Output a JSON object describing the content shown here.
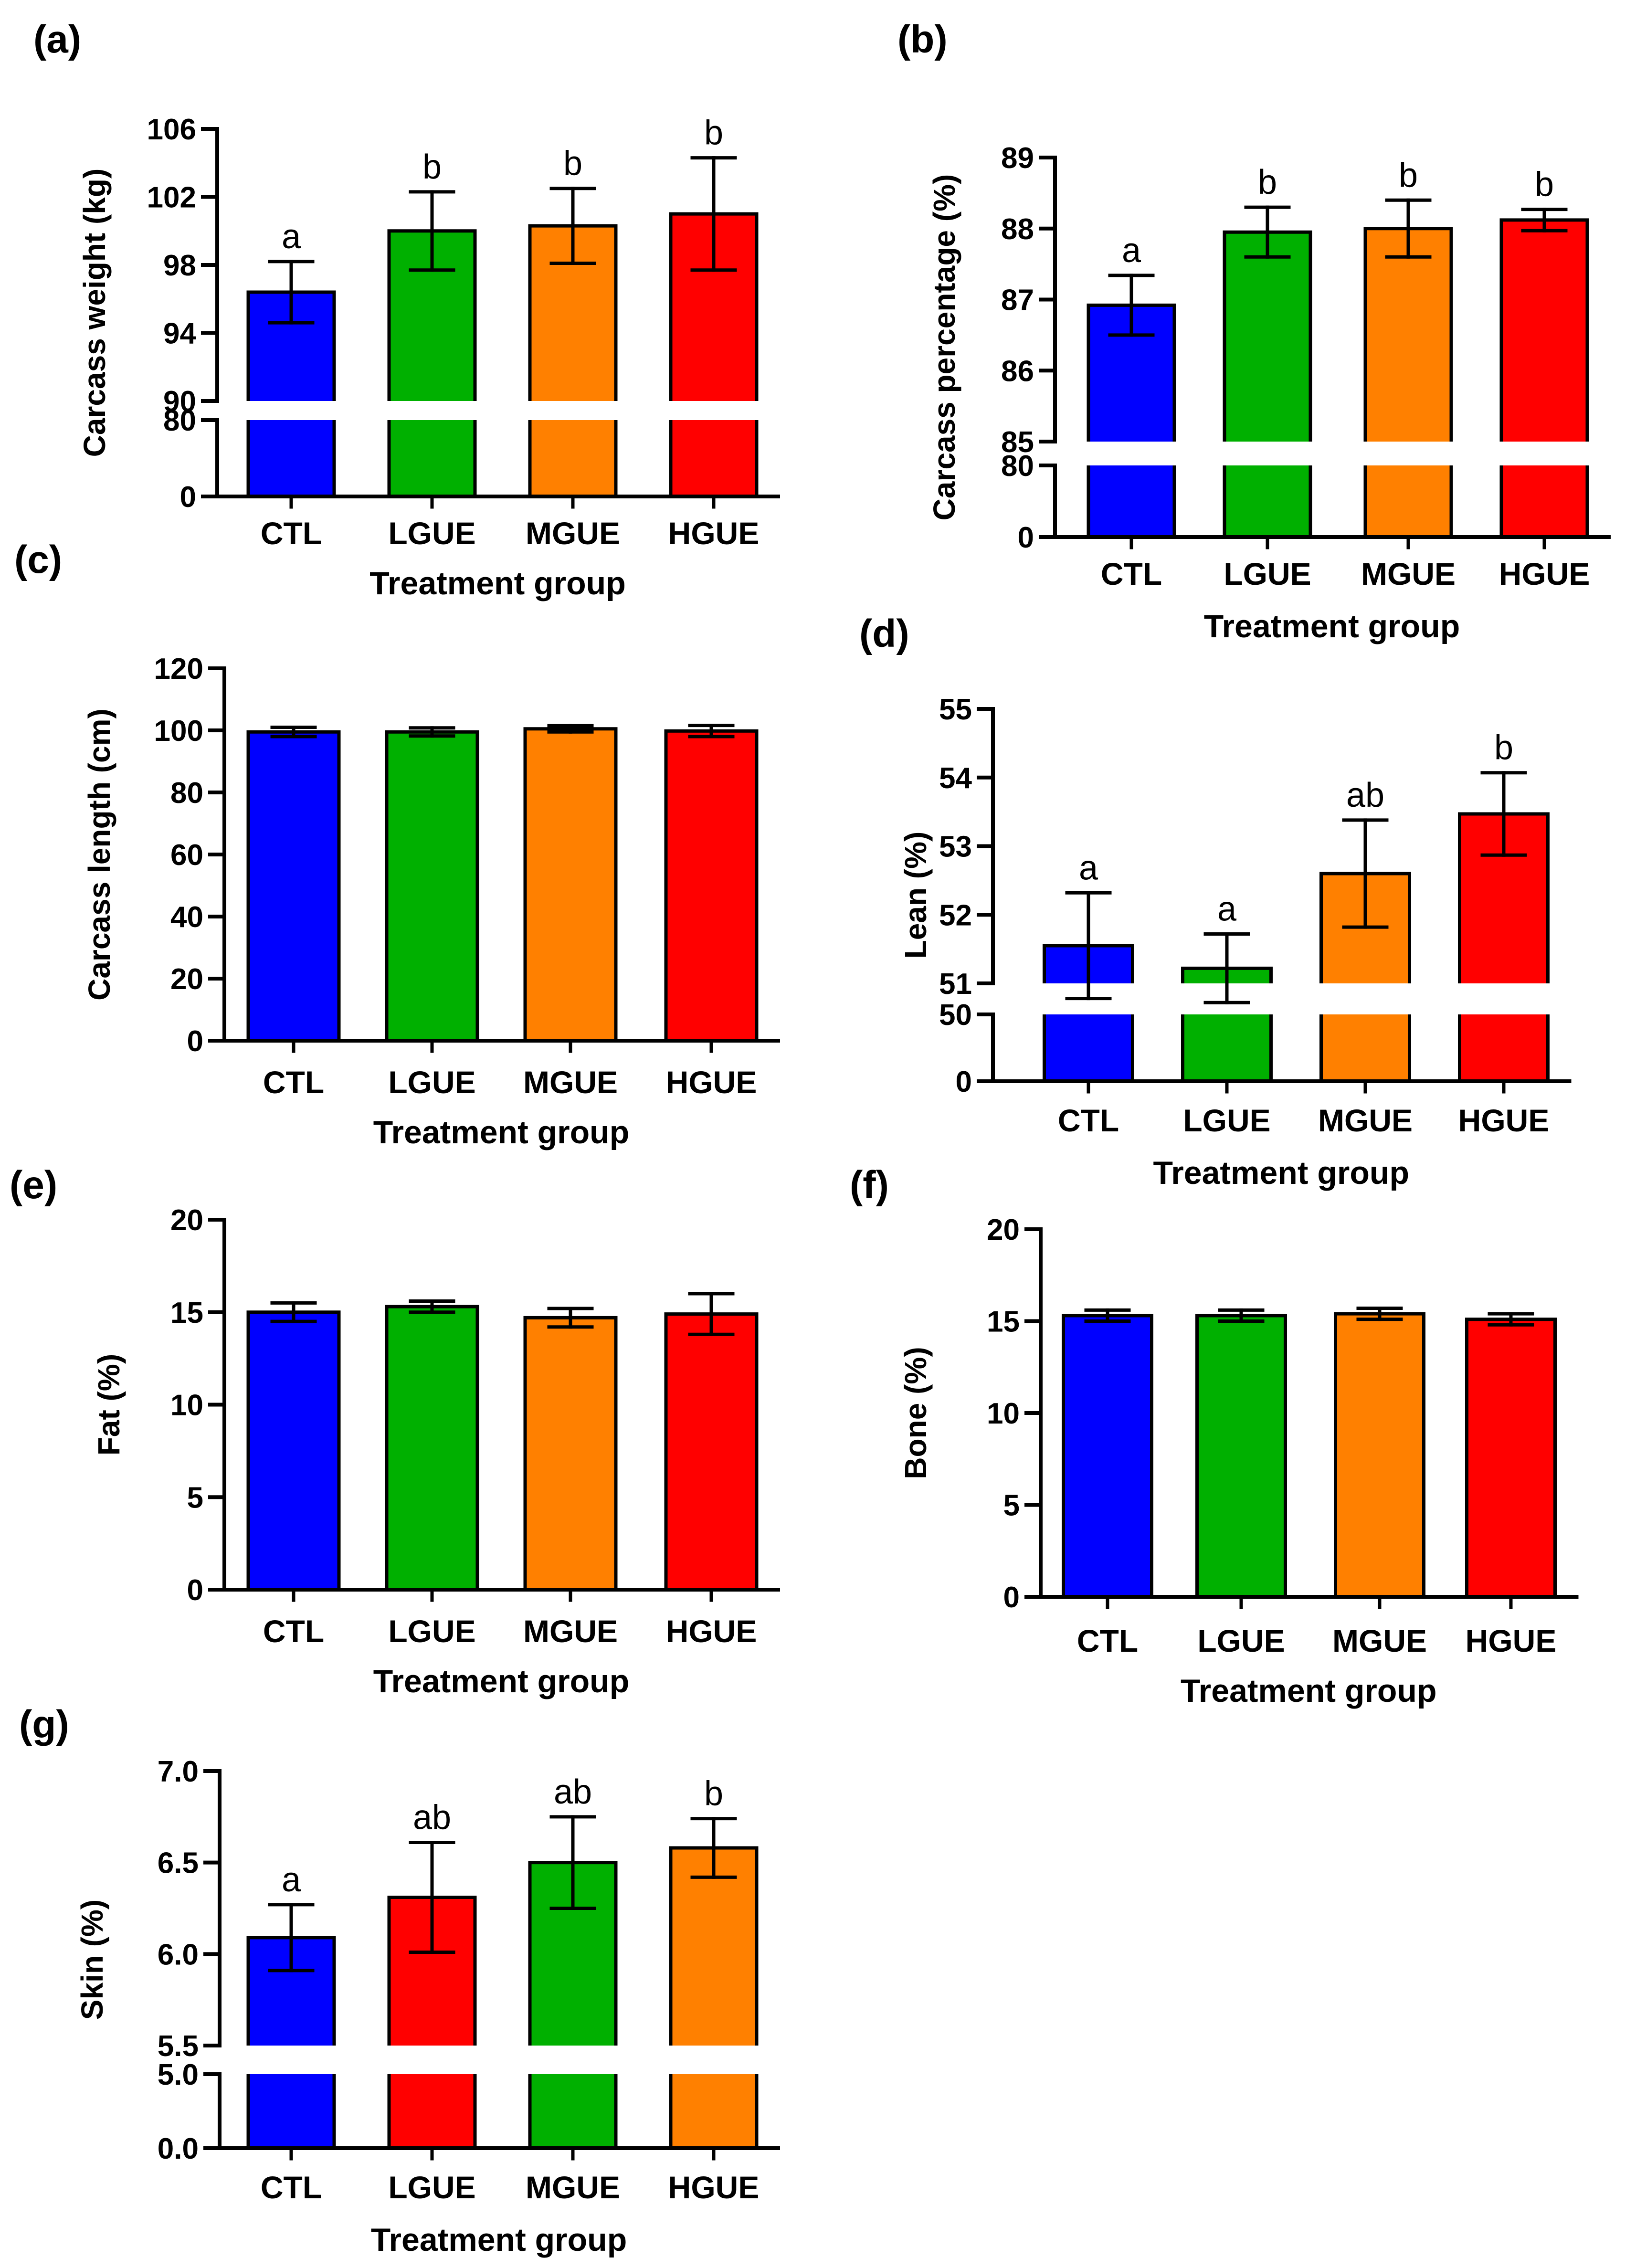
{
  "colors": {
    "axis": "#000000",
    "palette": {
      "blue": "#0000ff",
      "green": "#00b000",
      "orange": "#ff8000",
      "red": "#ff0000"
    }
  },
  "chart_data": [
    {
      "panel_label": "(a)",
      "type": "bar",
      "title": "",
      "xlabel": "Treatment group",
      "ylabel": "Carcass weight (kg)",
      "categories": [
        "CTL",
        "LGUE",
        "MGUE",
        "HGUE"
      ],
      "values": [
        96.4,
        100.0,
        100.3,
        101.0
      ],
      "errors": [
        1.8,
        2.3,
        2.2,
        3.3
      ],
      "letters": [
        "a",
        "b",
        "b",
        "b"
      ],
      "bar_colors": [
        "#0000ff",
        "#00b000",
        "#ff8000",
        "#ff0000"
      ],
      "axis_break": true,
      "lower_ylim": [
        0,
        80
      ],
      "lower_ticks": [
        "0",
        "80"
      ],
      "upper_ylim": [
        90,
        106
      ],
      "upper_ticks": [
        "90",
        "94",
        "98",
        "102",
        "106"
      ],
      "grid": false
    },
    {
      "panel_label": "(b)",
      "type": "bar",
      "title": "",
      "xlabel": "Treatment group",
      "ylabel": "Carcass percentage (%)",
      "categories": [
        "CTL",
        "LGUE",
        "MGUE",
        "HGUE"
      ],
      "values": [
        86.92,
        87.95,
        88.0,
        88.12
      ],
      "errors": [
        0.42,
        0.35,
        0.4,
        0.15
      ],
      "letters": [
        "a",
        "b",
        "b",
        "b"
      ],
      "bar_colors": [
        "#0000ff",
        "#00b000",
        "#ff8000",
        "#ff0000"
      ],
      "axis_break": true,
      "lower_ylim": [
        0,
        80
      ],
      "lower_ticks": [
        "0",
        "80"
      ],
      "upper_ylim": [
        85,
        89
      ],
      "upper_ticks": [
        "85",
        "86",
        "87",
        "88",
        "89"
      ],
      "grid": false
    },
    {
      "panel_label": "(c)",
      "type": "bar",
      "title": "",
      "xlabel": "Treatment group",
      "ylabel": "Carcass length (cm)",
      "categories": [
        "CTL",
        "LGUE",
        "MGUE",
        "HGUE"
      ],
      "values": [
        99.5,
        99.5,
        100.5,
        99.8
      ],
      "errors": [
        1.5,
        1.3,
        1.0,
        1.8
      ],
      "letters": [
        "",
        "",
        "",
        ""
      ],
      "bar_colors": [
        "#0000ff",
        "#00b000",
        "#ff8000",
        "#ff0000"
      ],
      "axis_break": false,
      "ylim": [
        0,
        120
      ],
      "ticks": [
        "0",
        "20",
        "40",
        "60",
        "80",
        "100",
        "120"
      ],
      "grid": false
    },
    {
      "panel_label": "(d)",
      "type": "bar",
      "title": "",
      "xlabel": "Treatment group",
      "ylabel": "Lean (%)",
      "categories": [
        "CTL",
        "LGUE",
        "MGUE",
        "HGUE"
      ],
      "values": [
        51.55,
        51.22,
        52.6,
        53.47
      ],
      "errors": [
        0.77,
        0.5,
        0.78,
        0.6
      ],
      "letters": [
        "a",
        "a",
        "ab",
        "b"
      ],
      "bar_colors": [
        "#0000ff",
        "#00b000",
        "#ff8000",
        "#ff0000"
      ],
      "axis_break": true,
      "lower_ylim": [
        0,
        50
      ],
      "lower_ticks": [
        "0",
        "50"
      ],
      "upper_ylim": [
        51,
        55
      ],
      "upper_ticks": [
        "51",
        "52",
        "53",
        "54",
        "55"
      ],
      "grid": false
    },
    {
      "panel_label": "(e)",
      "type": "bar",
      "title": "",
      "xlabel": "Treatment group",
      "ylabel": "Fat (%)",
      "categories": [
        "CTL",
        "LGUE",
        "MGUE",
        "HGUE"
      ],
      "values": [
        15.0,
        15.3,
        14.7,
        14.9
      ],
      "errors": [
        0.5,
        0.3,
        0.5,
        1.1
      ],
      "letters": [
        "",
        "",
        "",
        ""
      ],
      "bar_colors": [
        "#0000ff",
        "#00b000",
        "#ff8000",
        "#ff0000"
      ],
      "axis_break": false,
      "ylim": [
        0,
        20
      ],
      "ticks": [
        "0",
        "5",
        "10",
        "15",
        "20"
      ],
      "grid": false
    },
    {
      "panel_label": "(f)",
      "type": "bar",
      "title": "",
      "xlabel": "Treatment group",
      "ylabel": "Bone (%)",
      "categories": [
        "CTL",
        "LGUE",
        "MGUE",
        "HGUE"
      ],
      "values": [
        15.3,
        15.3,
        15.4,
        15.1
      ],
      "errors": [
        0.3,
        0.3,
        0.3,
        0.3
      ],
      "letters": [
        "",
        "",
        "",
        ""
      ],
      "bar_colors": [
        "#0000ff",
        "#00b000",
        "#ff8000",
        "#ff0000"
      ],
      "axis_break": false,
      "ylim": [
        0,
        20
      ],
      "ticks": [
        "0",
        "5",
        "10",
        "15",
        "20"
      ],
      "grid": false
    },
    {
      "panel_label": "(g)",
      "type": "bar",
      "title": "",
      "xlabel": "Treatment group",
      "ylabel": "Skin (%)",
      "categories": [
        "CTL",
        "LGUE",
        "MGUE",
        "HGUE"
      ],
      "values": [
        6.09,
        6.31,
        6.5,
        6.58
      ],
      "errors": [
        0.18,
        0.3,
        0.25,
        0.16
      ],
      "letters": [
        "a",
        "ab",
        "ab",
        "b"
      ],
      "bar_colors": [
        "#0000ff",
        "#ff0000",
        "#00b000",
        "#ff8000"
      ],
      "axis_break": true,
      "lower_ylim": [
        0,
        5
      ],
      "lower_ticks": [
        "0.0",
        "5.0"
      ],
      "upper_ylim": [
        5.5,
        7.0
      ],
      "upper_ticks": [
        "5.5",
        "6.0",
        "6.5",
        "7.0"
      ],
      "grid": false
    }
  ]
}
